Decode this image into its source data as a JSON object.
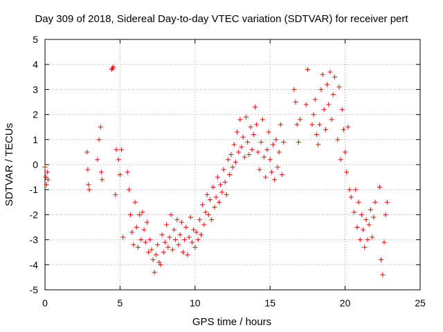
{
  "chart_data": {
    "type": "scatter",
    "title": "Day 309 of 2018, Sidereal Day-to-day VTEC variation (SDTVAR) for receiver pert",
    "xlabel": "GPS time / hours",
    "ylabel": "SDTVAR / TECUs",
    "xlim": [
      0,
      25
    ],
    "ylim": [
      -5,
      5
    ],
    "xticks": [
      0,
      5,
      10,
      15,
      20,
      25
    ],
    "yticks": [
      -5,
      -4,
      -3,
      -2,
      -1,
      0,
      1,
      2,
      3,
      4,
      5
    ],
    "grid": true,
    "marker": "plus",
    "series": [
      {
        "name": "SDTVAR",
        "color": "#ff0000",
        "x": [
          0.0,
          0.05,
          0.1,
          0.15,
          0.2,
          2.8,
          2.85,
          2.9,
          2.95,
          3.5,
          3.6,
          3.7,
          3.75,
          3.8,
          4.45,
          4.5,
          4.55,
          4.7,
          4.75,
          4.9,
          5.0,
          5.1,
          5.2,
          5.5,
          5.6,
          5.7,
          5.8,
          5.9,
          6.0,
          6.1,
          6.2,
          6.3,
          6.4,
          6.5,
          6.6,
          6.7,
          6.8,
          6.9,
          7.0,
          7.1,
          7.2,
          7.3,
          7.4,
          7.5,
          7.6,
          7.7,
          7.8,
          7.9,
          8.0,
          8.1,
          8.2,
          8.3,
          8.4,
          8.5,
          8.6,
          8.7,
          8.8,
          8.9,
          9.0,
          9.1,
          9.2,
          9.3,
          9.4,
          9.5,
          9.6,
          9.7,
          9.8,
          9.9,
          10.0,
          10.1,
          10.2,
          10.3,
          10.4,
          10.5,
          10.6,
          10.7,
          10.8,
          10.9,
          11.0,
          11.1,
          11.2,
          11.3,
          11.4,
          11.5,
          11.6,
          11.7,
          11.8,
          11.9,
          12.0,
          12.1,
          12.2,
          12.3,
          12.4,
          12.5,
          12.6,
          12.7,
          12.8,
          12.9,
          13.0,
          13.1,
          13.2,
          13.3,
          13.4,
          13.5,
          13.6,
          13.7,
          13.8,
          13.9,
          14.0,
          14.1,
          14.2,
          14.3,
          14.4,
          14.5,
          14.6,
          14.7,
          14.8,
          14.9,
          15.0,
          15.1,
          15.2,
          15.3,
          15.4,
          15.5,
          15.6,
          15.7,
          15.8,
          15.9,
          16.6,
          16.7,
          16.8,
          16.9,
          17.0,
          17.4,
          17.5,
          17.8,
          17.9,
          18.0,
          18.1,
          18.2,
          18.3,
          18.4,
          18.5,
          18.6,
          18.7,
          18.8,
          18.9,
          19.0,
          19.1,
          19.2,
          19.3,
          19.5,
          19.6,
          19.7,
          19.8,
          19.9,
          20.0,
          20.1,
          20.2,
          20.3,
          20.4,
          20.6,
          20.7,
          20.8,
          20.9,
          21.0,
          21.1,
          21.2,
          21.3,
          21.4,
          21.5,
          21.6,
          21.7,
          21.8,
          21.9,
          22.0,
          22.3,
          22.4,
          22.5,
          22.6,
          22.7,
          22.8
        ],
        "y": [
          -0.1,
          -0.5,
          -0.8,
          -0.3,
          -0.6,
          0.5,
          -0.2,
          -0.8,
          -1.0,
          0.2,
          1.0,
          1.5,
          -0.3,
          -0.6,
          3.8,
          3.85,
          3.9,
          -1.2,
          0.6,
          0.2,
          -0.4,
          0.6,
          -2.9,
          -0.3,
          -1.0,
          -2.0,
          -2.7,
          -3.2,
          -1.5,
          -2.5,
          -3.3,
          -2.0,
          -3.0,
          -1.9,
          -2.6,
          -3.1,
          -2.3,
          -3.5,
          -3.0,
          -3.4,
          -3.8,
          -4.3,
          -3.6,
          -3.2,
          -3.9,
          -4.0,
          -2.8,
          -3.5,
          -3.1,
          -2.4,
          -3.3,
          -2.9,
          -2.0,
          -3.4,
          -2.6,
          -3.0,
          -2.2,
          -3.2,
          -2.8,
          -2.3,
          -3.5,
          -3.0,
          -2.5,
          -3.6,
          -2.9,
          -2.1,
          -3.1,
          -2.6,
          -3.3,
          -2.7,
          -3.0,
          -2.2,
          -2.8,
          -1.6,
          -2.4,
          -1.9,
          -1.2,
          -2.0,
          -1.4,
          -2.2,
          -0.9,
          -1.7,
          -1.3,
          -0.5,
          -1.5,
          -0.8,
          -1.1,
          -0.2,
          -0.7,
          -1.2,
          0.2,
          -0.4,
          0.4,
          -0.1,
          0.8,
          0.1,
          1.3,
          0.5,
          1.8,
          0.7,
          1.1,
          0.3,
          1.9,
          0.9,
          0.4,
          1.5,
          0.6,
          1.2,
          2.3,
          1.6,
          0.5,
          -0.2,
          0.9,
          1.8,
          0.3,
          -0.5,
          0.6,
          1.3,
          0.2,
          -0.3,
          0.8,
          -0.6,
          1.0,
          -0.1,
          0.5,
          1.6,
          -0.4,
          0.9,
          3.0,
          2.5,
          1.6,
          0.9,
          1.8,
          2.4,
          3.8,
          1.6,
          2.0,
          2.6,
          1.2,
          0.8,
          1.6,
          3.0,
          3.6,
          2.2,
          1.4,
          3.2,
          2.4,
          3.7,
          1.8,
          2.8,
          3.5,
          1.0,
          3.1,
          0.2,
          2.2,
          1.4,
          0.5,
          -0.3,
          1.5,
          -1.0,
          -1.3,
          -1.9,
          -1.0,
          -2.5,
          -1.5,
          -3.0,
          -2.0,
          -2.6,
          -3.3,
          -2.2,
          -3.0,
          -2.4,
          -1.8,
          -2.9,
          -2.1,
          -1.5,
          -0.9,
          -3.8,
          -4.4,
          -3.1,
          -2.0,
          -1.5
        ]
      }
    ]
  }
}
